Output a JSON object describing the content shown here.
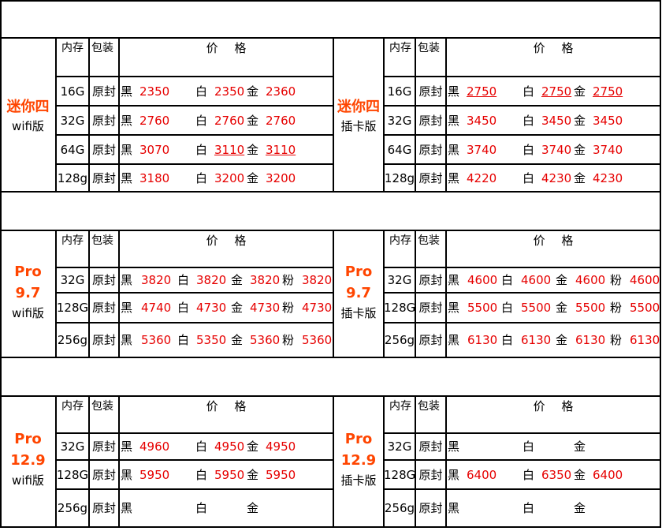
{
  "col_headers": {
    "storage": "内存",
    "packaging": "包装",
    "price": "价 格"
  },
  "colors": {
    "title": "#ff4500",
    "price": "#e60000"
  },
  "blocks": [
    {
      "left": {
        "title": "迷你四",
        "subtitle": "wifi版",
        "rows": [
          {
            "storage": "16G",
            "pkg": "原封",
            "prices": [
              {
                "c": "黑",
                "v": "2350"
              },
              {
                "c": "白",
                "v": "2350"
              },
              {
                "c": "金",
                "v": "2360"
              }
            ]
          },
          {
            "storage": "32G",
            "pkg": "原封",
            "prices": [
              {
                "c": "黑",
                "v": "2760"
              },
              {
                "c": "白",
                "v": "2760"
              },
              {
                "c": "金",
                "v": "2760"
              }
            ]
          },
          {
            "storage": "64G",
            "pkg": "原封",
            "prices": [
              {
                "c": "黑",
                "v": "3070"
              },
              {
                "c": "白",
                "v": "3110"
              },
              {
                "c": "金",
                "v": "3110"
              }
            ]
          },
          {
            "storage": "128g",
            "pkg": "原封",
            "prices": [
              {
                "c": "黑",
                "v": "3180"
              },
              {
                "c": "白",
                "v": "3200"
              },
              {
                "c": "金",
                "v": "3200"
              }
            ]
          }
        ]
      },
      "right": {
        "title": "迷你四",
        "subtitle": "插卡版",
        "rows": [
          {
            "storage": "16G",
            "pkg": "原封",
            "prices": [
              {
                "c": "黑",
                "v": "2750"
              },
              {
                "c": "白",
                "v": "2750"
              },
              {
                "c": "金",
                "v": "2750"
              }
            ]
          },
          {
            "storage": "32G",
            "pkg": "原封",
            "prices": [
              {
                "c": "黑",
                "v": "3450"
              },
              {
                "c": "白",
                "v": "3450"
              },
              {
                "c": "金",
                "v": "3450"
              }
            ]
          },
          {
            "storage": "64G",
            "pkg": "原封",
            "prices": [
              {
                "c": "黑",
                "v": "3740"
              },
              {
                "c": "白",
                "v": "3740"
              },
              {
                "c": "金",
                "v": "3740"
              }
            ]
          },
          {
            "storage": "128g",
            "pkg": "原封",
            "prices": [
              {
                "c": "黑",
                "v": "4220"
              },
              {
                "c": "白",
                "v": "4230"
              },
              {
                "c": "金",
                "v": "4230"
              }
            ]
          }
        ]
      }
    },
    {
      "left": {
        "title": "Pro",
        "title2": "9.7",
        "subtitle": "wifi版",
        "rows": [
          {
            "storage": "32G",
            "pkg": "原封",
            "prices": [
              {
                "c": "黑",
                "v": "3820"
              },
              {
                "c": "白",
                "v": "3820"
              },
              {
                "c": "金",
                "v": "3820"
              },
              {
                "c": "粉",
                "v": "3820"
              }
            ]
          },
          {
            "storage": "128G",
            "pkg": "原封",
            "prices": [
              {
                "c": "黑",
                "v": "4740"
              },
              {
                "c": "白",
                "v": "4730"
              },
              {
                "c": "金",
                "v": "4730"
              },
              {
                "c": "粉",
                "v": "4730"
              }
            ]
          },
          {
            "storage": "256g",
            "pkg": "原封",
            "prices": [
              {
                "c": "黑",
                "v": "5360"
              },
              {
                "c": "白",
                "v": "5350"
              },
              {
                "c": "金",
                "v": "5360"
              },
              {
                "c": "粉",
                "v": "5360"
              }
            ]
          }
        ]
      },
      "right": {
        "title": "Pro",
        "title2": "9.7",
        "subtitle": "插卡版",
        "rows": [
          {
            "storage": "32G",
            "pkg": "原封",
            "prices": [
              {
                "c": "黑",
                "v": "4600"
              },
              {
                "c": "白",
                "v": "4600"
              },
              {
                "c": "金",
                "v": "4600"
              },
              {
                "c": "粉",
                "v": "4600"
              }
            ]
          },
          {
            "storage": "128G",
            "pkg": "原封",
            "prices": [
              {
                "c": "黑",
                "v": "5500"
              },
              {
                "c": "白",
                "v": "5500"
              },
              {
                "c": "金",
                "v": "5500"
              },
              {
                "c": "粉",
                "v": "5500"
              }
            ]
          },
          {
            "storage": "256g",
            "pkg": "原封",
            "prices": [
              {
                "c": "黑",
                "v": "6130"
              },
              {
                "c": "白",
                "v": "6130"
              },
              {
                "c": "金",
                "v": "6130"
              },
              {
                "c": "粉",
                "v": "6130"
              }
            ]
          }
        ]
      }
    },
    {
      "left": {
        "title": "Pro",
        "title2": "12.9",
        "subtitle": "wifi版",
        "rows": [
          {
            "storage": "32G",
            "pkg": "原封",
            "prices": [
              {
                "c": "黑",
                "v": "4960"
              },
              {
                "c": "白",
                "v": "4950"
              },
              {
                "c": "金",
                "v": "4950"
              }
            ]
          },
          {
            "storage": "128G",
            "pkg": "原封",
            "prices": [
              {
                "c": "黑",
                "v": "5950"
              },
              {
                "c": "白",
                "v": "5950"
              },
              {
                "c": "金",
                "v": "5950"
              }
            ]
          },
          {
            "storage": "256g",
            "pkg": "原封",
            "prices": [
              {
                "c": "黑",
                "v": ""
              },
              {
                "c": "白",
                "v": ""
              },
              {
                "c": "金",
                "v": ""
              }
            ]
          }
        ]
      },
      "right": {
        "title": "Pro",
        "title2": "12.9",
        "subtitle": "插卡版",
        "rows": [
          {
            "storage": "32G",
            "pkg": "原封",
            "prices": [
              {
                "c": "黑",
                "v": ""
              },
              {
                "c": "白",
                "v": ""
              },
              {
                "c": "金",
                "v": ""
              }
            ]
          },
          {
            "storage": "128G",
            "pkg": "原封",
            "prices": [
              {
                "c": "黑",
                "v": "6400"
              },
              {
                "c": "白",
                "v": "6350"
              },
              {
                "c": "金",
                "v": "6400"
              }
            ]
          },
          {
            "storage": "256g",
            "pkg": "原封",
            "prices": [
              {
                "c": "黑",
                "v": ""
              },
              {
                "c": "白",
                "v": ""
              },
              {
                "c": "金",
                "v": ""
              }
            ]
          }
        ]
      }
    }
  ]
}
